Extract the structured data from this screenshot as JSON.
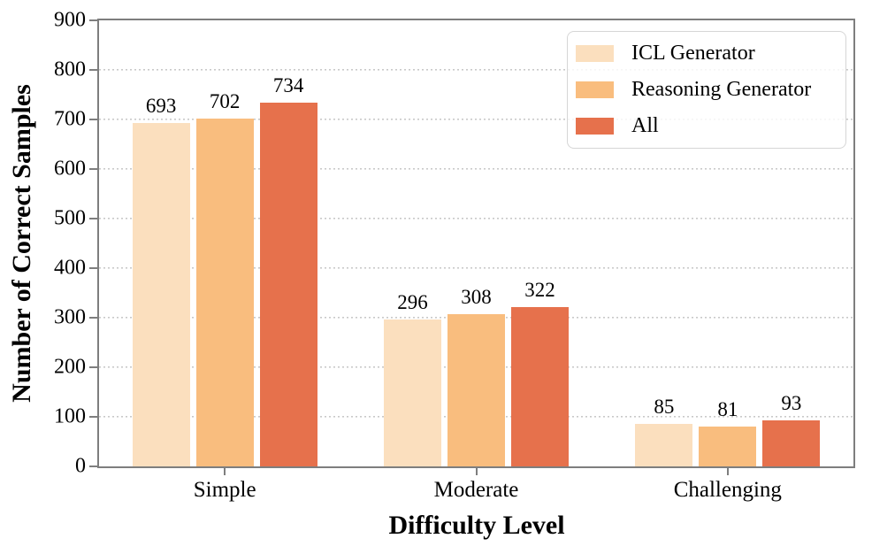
{
  "chart_data": {
    "type": "bar",
    "title": "",
    "xlabel": "Difficulty Level",
    "ylabel": "Number of Correct Samples",
    "categories": [
      "Simple",
      "Moderate",
      "Challenging"
    ],
    "series": [
      {
        "name": "ICL Generator",
        "color": "#fbdfbe",
        "values": [
          693,
          296,
          85
        ]
      },
      {
        "name": "Reasoning Generator",
        "color": "#f9bd7e",
        "values": [
          702,
          308,
          81
        ]
      },
      {
        "name": "All",
        "color": "#e6714c",
        "values": [
          734,
          322,
          93
        ]
      }
    ],
    "ylim": [
      0,
      900
    ],
    "yticks": [
      0,
      100,
      200,
      300,
      400,
      500,
      600,
      700,
      800,
      900
    ],
    "grid": "horizontal-dotted",
    "legend_position": "upper right",
    "bar_labels": true
  },
  "colors": {
    "spine": "#7e7e7e",
    "grid": "#c9c9c9",
    "text": "#000000",
    "legend_border": "#d6d6d6",
    "background": "#ffffff"
  }
}
